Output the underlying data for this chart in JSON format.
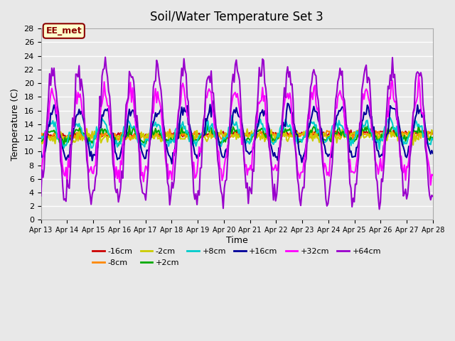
{
  "title": "Soil/Water Temperature Set 3",
  "xlabel": "Time",
  "ylabel": "Temperature (C)",
  "ylim": [
    0,
    28
  ],
  "yticks": [
    0,
    2,
    4,
    6,
    8,
    10,
    12,
    14,
    16,
    18,
    20,
    22,
    24,
    26,
    28
  ],
  "bg_color": "#e8e8e8",
  "plot_bg_color": "#e8e8e8",
  "annotation_text": "EE_met",
  "annotation_bg": "#ffffcc",
  "annotation_border": "#8b0000",
  "annotation_text_color": "#8b0000",
  "series": {
    "-16cm": {
      "color": "#cc0000",
      "linewidth": 1.5,
      "zorder": 5
    },
    "-8cm": {
      "color": "#ff8800",
      "linewidth": 1.5,
      "zorder": 5
    },
    "-2cm": {
      "color": "#cccc00",
      "linewidth": 1.5,
      "zorder": 5
    },
    "+2cm": {
      "color": "#00aa00",
      "linewidth": 1.5,
      "zorder": 5
    },
    "+8cm": {
      "color": "#00cccc",
      "linewidth": 1.5,
      "zorder": 5
    },
    "+16cm": {
      "color": "#000099",
      "linewidth": 1.5,
      "zorder": 5
    },
    "+32cm": {
      "color": "#ff00ff",
      "linewidth": 1.5,
      "zorder": 6
    },
    "+64cm": {
      "color": "#9900cc",
      "linewidth": 1.5,
      "zorder": 7
    }
  },
  "x_start": 0,
  "x_end": 15,
  "num_points": 360,
  "xtick_positions": [
    0,
    1,
    2,
    3,
    4,
    5,
    6,
    7,
    8,
    9,
    10,
    11,
    12,
    13,
    14,
    15
  ],
  "xtick_labels": [
    "Apr 13",
    "Apr 14",
    "Apr 15",
    "Apr 16",
    "Apr 17",
    "Apr 18",
    "Apr 19",
    "Apr 20",
    "Apr 21",
    "Apr 22",
    "Apr 23",
    "Apr 24",
    "Apr 25",
    "Apr 26",
    "Apr 27",
    "Apr 28"
  ]
}
